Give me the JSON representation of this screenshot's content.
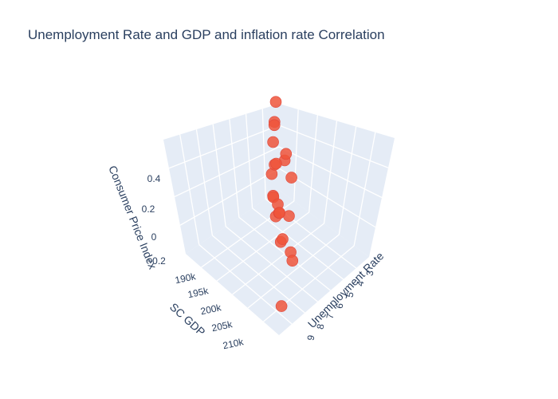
{
  "chart_data": {
    "type": "scatter3d",
    "title": "Unemployment Rate and GDP and inflation rate Correlation",
    "xlabel": "Unemployment Rate",
    "ylabel": "SC GDP",
    "zlabel": "Consumer Price Index",
    "x_ticks": [
      "3",
      "4",
      "5",
      "6",
      "7",
      "8",
      "9"
    ],
    "y_ticks": [
      "190k",
      "195k",
      "200k",
      "205k",
      "210k"
    ],
    "z_ticks": [
      "−0.2",
      "0",
      "0.2",
      "0.4"
    ],
    "marker_color": "#ef553b",
    "points_xyz": [
      {
        "x": 3.1,
        "y": 189000,
        "z": 0.4
      },
      {
        "x": 3.4,
        "y": 190500,
        "z": 0.31
      },
      {
        "x": 3.7,
        "y": 192000,
        "z": 0.22
      },
      {
        "x": 4.0,
        "y": 193500,
        "z": 0.05
      },
      {
        "x": 4.3,
        "y": 191000,
        "z": 0.12
      },
      {
        "x": 4.6,
        "y": 195000,
        "z": 0.45
      },
      {
        "x": 4.9,
        "y": 196500,
        "z": 0.02
      },
      {
        "x": 5.2,
        "y": 194000,
        "z": 0.28
      },
      {
        "x": 5.5,
        "y": 198000,
        "z": -0.05
      },
      {
        "x": 5.8,
        "y": 199500,
        "z": 0.35
      },
      {
        "x": 6.1,
        "y": 201000,
        "z": 0.18
      },
      {
        "x": 6.4,
        "y": 197000,
        "z": 0.26
      },
      {
        "x": 6.7,
        "y": 202500,
        "z": 0.48
      },
      {
        "x": 7.0,
        "y": 200000,
        "z": 0.1
      },
      {
        "x": 7.3,
        "y": 204000,
        "z": 0.22
      },
      {
        "x": 7.6,
        "y": 205500,
        "z": 0.33
      },
      {
        "x": 7.9,
        "y": 203000,
        "z": -0.02
      },
      {
        "x": 8.2,
        "y": 207000,
        "z": 0.15
      },
      {
        "x": 8.5,
        "y": 208500,
        "z": 0.4
      },
      {
        "x": 8.8,
        "y": 206000,
        "z": 0.05
      },
      {
        "x": 9.1,
        "y": 210000,
        "z": 0.3
      },
      {
        "x": 9.4,
        "y": 211500,
        "z": -0.1
      }
    ]
  }
}
